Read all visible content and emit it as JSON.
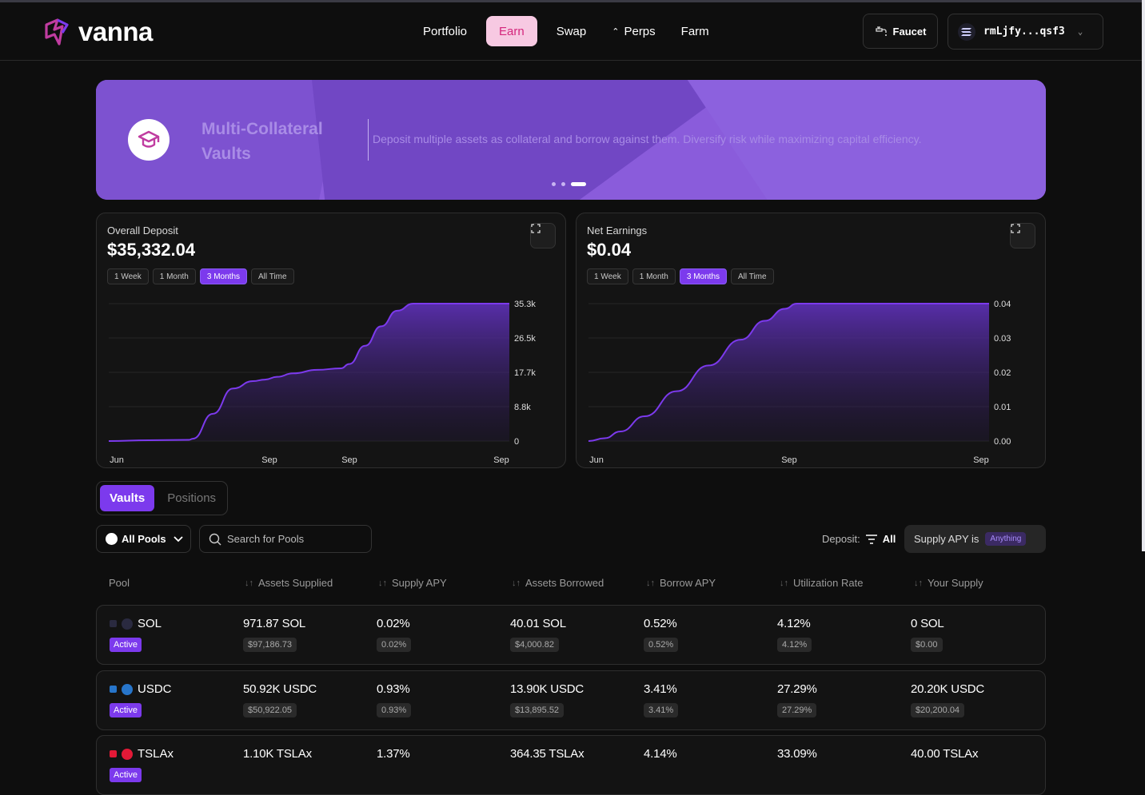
{
  "brand": {
    "name": "vanna"
  },
  "nav": {
    "items": [
      {
        "label": "Portfolio"
      },
      {
        "label": "Earn"
      },
      {
        "label": "Swap"
      },
      {
        "label": "Perps"
      },
      {
        "label": "Farm"
      }
    ],
    "active": "Earn"
  },
  "header": {
    "faucet_label": "Faucet",
    "wallet_address": "rmLjfy...qsf3"
  },
  "banner": {
    "title": "Multi-Collateral Vaults",
    "description": "Deposit multiple assets as collateral and borrow against them. Diversify risk while maximizing capital efficiency.",
    "slide_count": 3,
    "active_slide": 3
  },
  "charts": {
    "deposit": {
      "title": "Overall Deposit",
      "value": "$35,332.04",
      "ranges": [
        "1 Week",
        "1 Month",
        "3 Months",
        "All Time"
      ],
      "active_range": "3 Months"
    },
    "earnings": {
      "title": "Net Earnings",
      "value": "$0.04",
      "ranges": [
        "1 Week",
        "1 Month",
        "3 Months",
        "All Time"
      ],
      "active_range": "3 Months"
    }
  },
  "chart_data": [
    {
      "type": "area",
      "title": "Overall Deposit",
      "x_ticks": [
        "Jun",
        "Sep",
        "Sep",
        "Sep"
      ],
      "y_ticks": [
        "0",
        "8.8k",
        "17.7k",
        "26.5k",
        "35.3k"
      ],
      "ylim": [
        0,
        35332
      ],
      "x": [
        0,
        0.1,
        0.2,
        0.21,
        0.26,
        0.31,
        0.36,
        0.39,
        0.42,
        0.46,
        0.52,
        0.58,
        0.6,
        0.64,
        0.68,
        0.72,
        0.76,
        0.79,
        0.82,
        1.0
      ],
      "values": [
        0,
        200,
        300,
        600,
        7000,
        13500,
        15400,
        15800,
        16500,
        17400,
        18300,
        18700,
        19800,
        24500,
        29500,
        33500,
        35332,
        35332,
        35332,
        35332
      ],
      "color": "#7c3aed"
    },
    {
      "type": "area",
      "title": "Net Earnings",
      "x_ticks": [
        "Jun",
        "Sep",
        "Sep"
      ],
      "y_ticks": [
        "0.00",
        "0.01",
        "0.02",
        "0.03",
        "0.04"
      ],
      "ylim": [
        0,
        0.04
      ],
      "x": [
        0,
        0.04,
        0.08,
        0.14,
        0.22,
        0.3,
        0.38,
        0.44,
        0.49,
        0.52,
        0.56,
        0.7,
        1.0
      ],
      "values": [
        0,
        0.0008,
        0.0028,
        0.0072,
        0.0145,
        0.022,
        0.0295,
        0.035,
        0.0385,
        0.04,
        0.04,
        0.04,
        0.04
      ],
      "color": "#7c3aed"
    }
  ],
  "tabs": [
    {
      "label": "Vaults"
    },
    {
      "label": "Positions"
    }
  ],
  "filters": {
    "pools_label": "All Pools",
    "search_placeholder": "Search for Pools",
    "deposit_label": "Deposit:",
    "deposit_value": "All",
    "apy_label": "Supply APY is",
    "apy_value": "Anything"
  },
  "table": {
    "headers": [
      "Pool",
      "Assets Supplied",
      "Supply APY",
      "Assets Borrowed",
      "Borrow APY",
      "Utilization Rate",
      "Your Supply"
    ],
    "rows": [
      {
        "pool": "SOL",
        "status": "Active",
        "icon_color": "#2a2a40",
        "cells": [
          {
            "main": "971.87 SOL",
            "sub": "$97,186.73"
          },
          {
            "main": "0.02%",
            "sub": "0.02%"
          },
          {
            "main": "40.01 SOL",
            "sub": "$4,000.82"
          },
          {
            "main": "0.52%",
            "sub": "0.52%"
          },
          {
            "main": "4.12%",
            "sub": "4.12%"
          },
          {
            "main": "0 SOL",
            "sub": "$0.00"
          }
        ]
      },
      {
        "pool": "USDC",
        "status": "Active",
        "icon_color": "#2775ca",
        "cells": [
          {
            "main": "50.92K USDC",
            "sub": "$50,922.05"
          },
          {
            "main": "0.93%",
            "sub": "0.93%"
          },
          {
            "main": "13.90K USDC",
            "sub": "$13,895.52"
          },
          {
            "main": "3.41%",
            "sub": "3.41%"
          },
          {
            "main": "27.29%",
            "sub": "27.29%"
          },
          {
            "main": "20.20K USDC",
            "sub": "$20,200.04"
          }
        ]
      },
      {
        "pool": "TSLAx",
        "status": "Active",
        "icon_color": "#e31937",
        "cells": [
          {
            "main": "1.10K TSLAx",
            "sub": ""
          },
          {
            "main": "1.37%",
            "sub": ""
          },
          {
            "main": "364.35 TSLAx",
            "sub": ""
          },
          {
            "main": "4.14%",
            "sub": ""
          },
          {
            "main": "33.09%",
            "sub": ""
          },
          {
            "main": "40.00 TSLAx",
            "sub": ""
          }
        ]
      }
    ]
  }
}
